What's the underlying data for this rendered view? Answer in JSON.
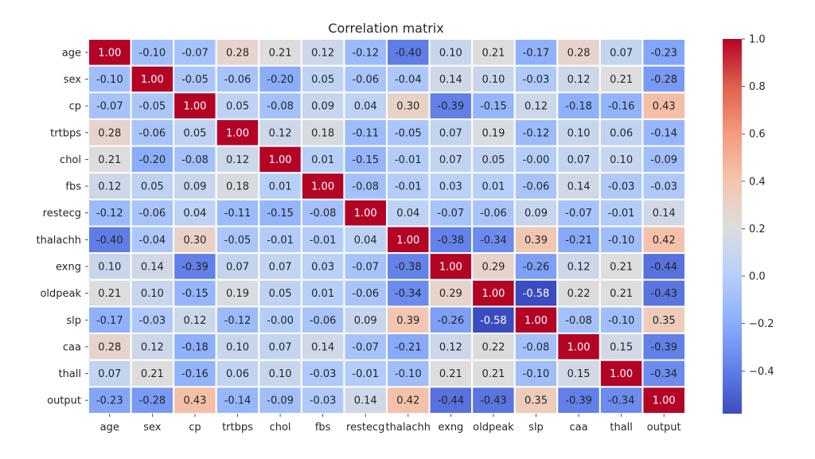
{
  "chart_data": {
    "type": "heatmap",
    "title": "Correlation matrix",
    "xlabel": "",
    "ylabel": "",
    "colormap": "coolwarm",
    "vmin": -0.58,
    "vmax": 1.0,
    "colorbar_ticks": [
      "1.0",
      "0.8",
      "0.6",
      "0.4",
      "0.2",
      "0.0",
      "−0.2",
      "−0.4"
    ],
    "colorbar_tick_values": [
      1.0,
      0.8,
      0.6,
      0.4,
      0.2,
      0.0,
      -0.2,
      -0.4
    ],
    "labels": [
      "age",
      "sex",
      "cp",
      "trtbps",
      "chol",
      "fbs",
      "restecg",
      "thalachh",
      "exng",
      "oldpeak",
      "slp",
      "caa",
      "thall",
      "output"
    ],
    "values": [
      [
        1.0,
        -0.1,
        -0.07,
        0.28,
        0.21,
        0.12,
        -0.12,
        -0.4,
        0.1,
        0.21,
        -0.17,
        0.28,
        0.07,
        -0.23
      ],
      [
        -0.1,
        1.0,
        -0.05,
        -0.06,
        -0.2,
        0.05,
        -0.06,
        -0.04,
        0.14,
        0.1,
        -0.03,
        0.12,
        0.21,
        -0.28
      ],
      [
        -0.07,
        -0.05,
        1.0,
        0.05,
        -0.08,
        0.09,
        0.04,
        0.3,
        -0.39,
        -0.15,
        0.12,
        -0.18,
        -0.16,
        0.43
      ],
      [
        0.28,
        -0.06,
        0.05,
        1.0,
        0.12,
        0.18,
        -0.11,
        -0.05,
        0.07,
        0.19,
        -0.12,
        0.1,
        0.06,
        -0.14
      ],
      [
        0.21,
        -0.2,
        -0.08,
        0.12,
        1.0,
        0.01,
        -0.15,
        -0.01,
        0.07,
        0.05,
        -0.0,
        0.07,
        0.1,
        -0.09
      ],
      [
        0.12,
        0.05,
        0.09,
        0.18,
        0.01,
        1.0,
        -0.08,
        -0.01,
        0.03,
        0.01,
        -0.06,
        0.14,
        -0.03,
        -0.03
      ],
      [
        -0.12,
        -0.06,
        0.04,
        -0.11,
        -0.15,
        -0.08,
        1.0,
        0.04,
        -0.07,
        -0.06,
        0.09,
        -0.07,
        -0.01,
        0.14
      ],
      [
        -0.4,
        -0.04,
        0.3,
        -0.05,
        -0.01,
        -0.01,
        0.04,
        1.0,
        -0.38,
        -0.34,
        0.39,
        -0.21,
        -0.1,
        0.42
      ],
      [
        0.1,
        0.14,
        -0.39,
        0.07,
        0.07,
        0.03,
        -0.07,
        -0.38,
        1.0,
        0.29,
        -0.26,
        0.12,
        0.21,
        -0.44
      ],
      [
        0.21,
        0.1,
        -0.15,
        0.19,
        0.05,
        0.01,
        -0.06,
        -0.34,
        0.29,
        1.0,
        -0.58,
        0.22,
        0.21,
        -0.43
      ],
      [
        -0.17,
        -0.03,
        0.12,
        -0.12,
        -0.0,
        -0.06,
        0.09,
        0.39,
        -0.26,
        -0.58,
        1.0,
        -0.08,
        -0.1,
        0.35
      ],
      [
        0.28,
        0.12,
        -0.18,
        0.1,
        0.07,
        0.14,
        -0.07,
        -0.21,
        0.12,
        0.22,
        -0.08,
        1.0,
        0.15,
        -0.39
      ],
      [
        0.07,
        0.21,
        -0.16,
        0.06,
        0.1,
        -0.03,
        -0.01,
        -0.1,
        0.21,
        0.21,
        -0.1,
        0.15,
        1.0,
        -0.34
      ],
      [
        -0.23,
        -0.28,
        0.43,
        -0.14,
        -0.09,
        -0.03,
        0.14,
        0.42,
        -0.44,
        -0.43,
        0.35,
        -0.39,
        -0.34,
        1.0
      ]
    ],
    "cell_labels": [
      [
        "1.00",
        "-0.10",
        "-0.07",
        "0.28",
        "0.21",
        "0.12",
        "-0.12",
        "-0.40",
        "0.10",
        "0.21",
        "-0.17",
        "0.28",
        "0.07",
        "-0.23"
      ],
      [
        "-0.10",
        "1.00",
        "-0.05",
        "-0.06",
        "-0.20",
        "0.05",
        "-0.06",
        "-0.04",
        "0.14",
        "0.10",
        "-0.03",
        "0.12",
        "0.21",
        "-0.28"
      ],
      [
        "-0.07",
        "-0.05",
        "1.00",
        "0.05",
        "-0.08",
        "0.09",
        "0.04",
        "0.30",
        "-0.39",
        "-0.15",
        "0.12",
        "-0.18",
        "-0.16",
        "0.43"
      ],
      [
        "0.28",
        "-0.06",
        "0.05",
        "1.00",
        "0.12",
        "0.18",
        "-0.11",
        "-0.05",
        "0.07",
        "0.19",
        "-0.12",
        "0.10",
        "0.06",
        "-0.14"
      ],
      [
        "0.21",
        "-0.20",
        "-0.08",
        "0.12",
        "1.00",
        "0.01",
        "-0.15",
        "-0.01",
        "0.07",
        "0.05",
        "-0.00",
        "0.07",
        "0.10",
        "-0.09"
      ],
      [
        "0.12",
        "0.05",
        "0.09",
        "0.18",
        "0.01",
        "1.00",
        "-0.08",
        "-0.01",
        "0.03",
        "0.01",
        "-0.06",
        "0.14",
        "-0.03",
        "-0.03"
      ],
      [
        "-0.12",
        "-0.06",
        "0.04",
        "-0.11",
        "-0.15",
        "-0.08",
        "1.00",
        "0.04",
        "-0.07",
        "-0.06",
        "0.09",
        "-0.07",
        "-0.01",
        "0.14"
      ],
      [
        "-0.40",
        "-0.04",
        "0.30",
        "-0.05",
        "-0.01",
        "-0.01",
        "0.04",
        "1.00",
        "-0.38",
        "-0.34",
        "0.39",
        "-0.21",
        "-0.10",
        "0.42"
      ],
      [
        "0.10",
        "0.14",
        "-0.39",
        "0.07",
        "0.07",
        "0.03",
        "-0.07",
        "-0.38",
        "1.00",
        "0.29",
        "-0.26",
        "0.12",
        "0.21",
        "-0.44"
      ],
      [
        "0.21",
        "0.10",
        "-0.15",
        "0.19",
        "0.05",
        "0.01",
        "-0.06",
        "-0.34",
        "0.29",
        "1.00",
        "-0.58",
        "0.22",
        "0.21",
        "-0.43"
      ],
      [
        "-0.17",
        "-0.03",
        "0.12",
        "-0.12",
        "-0.00",
        "-0.06",
        "0.09",
        "0.39",
        "-0.26",
        "-0.58",
        "1.00",
        "-0.08",
        "-0.10",
        "0.35"
      ],
      [
        "0.28",
        "0.12",
        "-0.18",
        "0.10",
        "0.07",
        "0.14",
        "-0.07",
        "-0.21",
        "0.12",
        "0.22",
        "-0.08",
        "1.00",
        "0.15",
        "-0.39"
      ],
      [
        "0.07",
        "0.21",
        "-0.16",
        "0.06",
        "0.10",
        "-0.03",
        "-0.01",
        "-0.10",
        "0.21",
        "0.21",
        "-0.10",
        "0.15",
        "1.00",
        "-0.34"
      ],
      [
        "-0.23",
        "-0.28",
        "0.43",
        "-0.14",
        "-0.09",
        "-0.03",
        "0.14",
        "0.42",
        "-0.44",
        "-0.43",
        "0.35",
        "-0.39",
        "-0.34",
        "1.00"
      ]
    ],
    "grid": false,
    "cell_border_color": "#ffffff"
  }
}
